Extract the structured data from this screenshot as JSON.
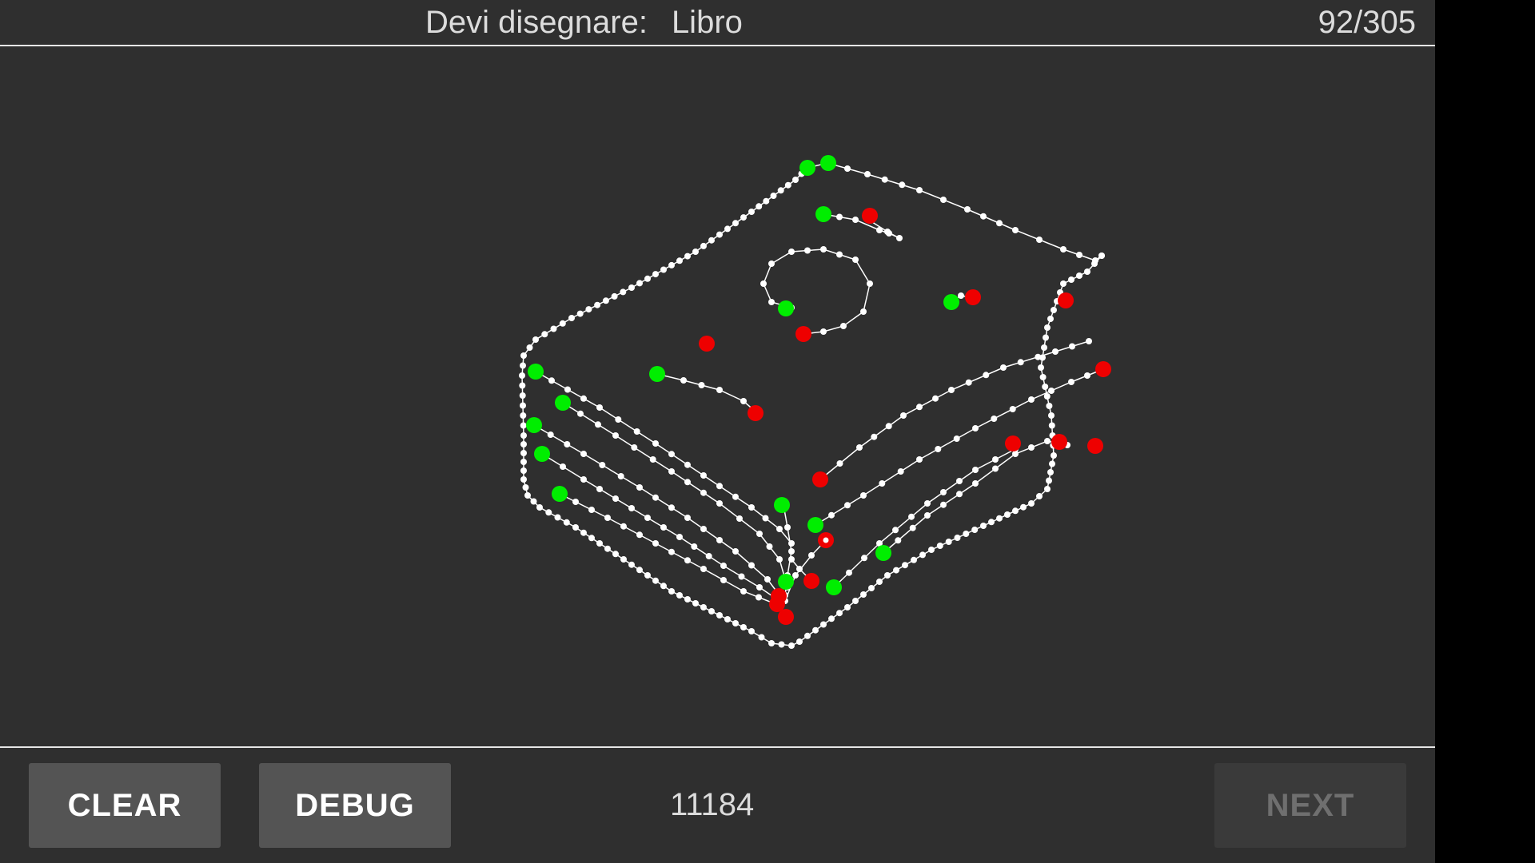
{
  "header": {
    "prompt_label": "Devi disegnare:",
    "prompt_word": "Libro",
    "progress": "92/305"
  },
  "footer": {
    "clear_label": "CLEAR",
    "debug_label": "DEBUG",
    "score": "11184",
    "next_label": "NEXT",
    "next_enabled": false
  },
  "drawing": {
    "subject": "book",
    "stroke_color": "#ffffff",
    "start_marker_color": "#00ee00",
    "end_marker_color": "#ee0000"
  }
}
